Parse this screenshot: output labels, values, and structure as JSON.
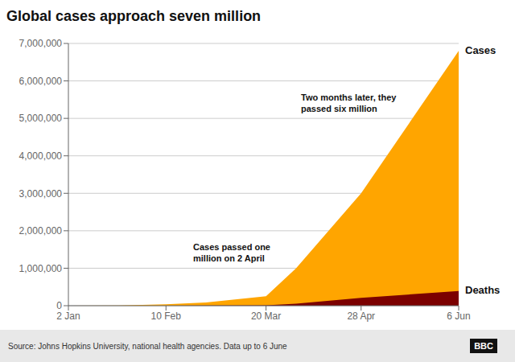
{
  "chart_data": {
    "type": "area",
    "title": "Global cases approach seven million",
    "source": "Source: Johns Hopkins University, national health agencies. Data up to 6 June",
    "credit": "BBC",
    "annotations": [
      "Cases passed one\nmillion on 2 April",
      "Two months later, they\npassed six million"
    ],
    "x": [
      0,
      20,
      39,
      55,
      79,
      91,
      117,
      156
    ],
    "series": [
      {
        "name": "Cases",
        "color": "#FFA500",
        "values": [
          300,
          6000,
          40000,
          85000,
          250000,
          1000000,
          3000000,
          6800000
        ]
      },
      {
        "name": "Deaths",
        "color": "#7B0000",
        "values": [
          8,
          130,
          1800,
          3000,
          10000,
          52000,
          210000,
          390000
        ]
      }
    ],
    "xlim": [
      0,
      156
    ],
    "xticks": [
      {
        "value": 0,
        "label": "2 Jan"
      },
      {
        "value": 39,
        "label": "10 Feb"
      },
      {
        "value": 79,
        "label": "20 Mar"
      },
      {
        "value": 117,
        "label": "28 Apr"
      },
      {
        "value": 156,
        "label": "6 Jun"
      }
    ],
    "ylim": [
      0,
      7000000
    ],
    "yticks": [
      0,
      {
        "value": 1000000,
        "label": "1,000,000"
      },
      {
        "value": 2000000,
        "label": "2,000,000"
      },
      {
        "value": 3000000,
        "label": "3,000,000"
      },
      {
        "value": 4000000,
        "label": "4,000,000"
      },
      {
        "value": 5000000,
        "label": "5,000,000"
      },
      {
        "value": 6000000,
        "label": "6,000,000"
      },
      {
        "value": 7000000,
        "label": "7,000,000"
      }
    ],
    "grid": true
  }
}
